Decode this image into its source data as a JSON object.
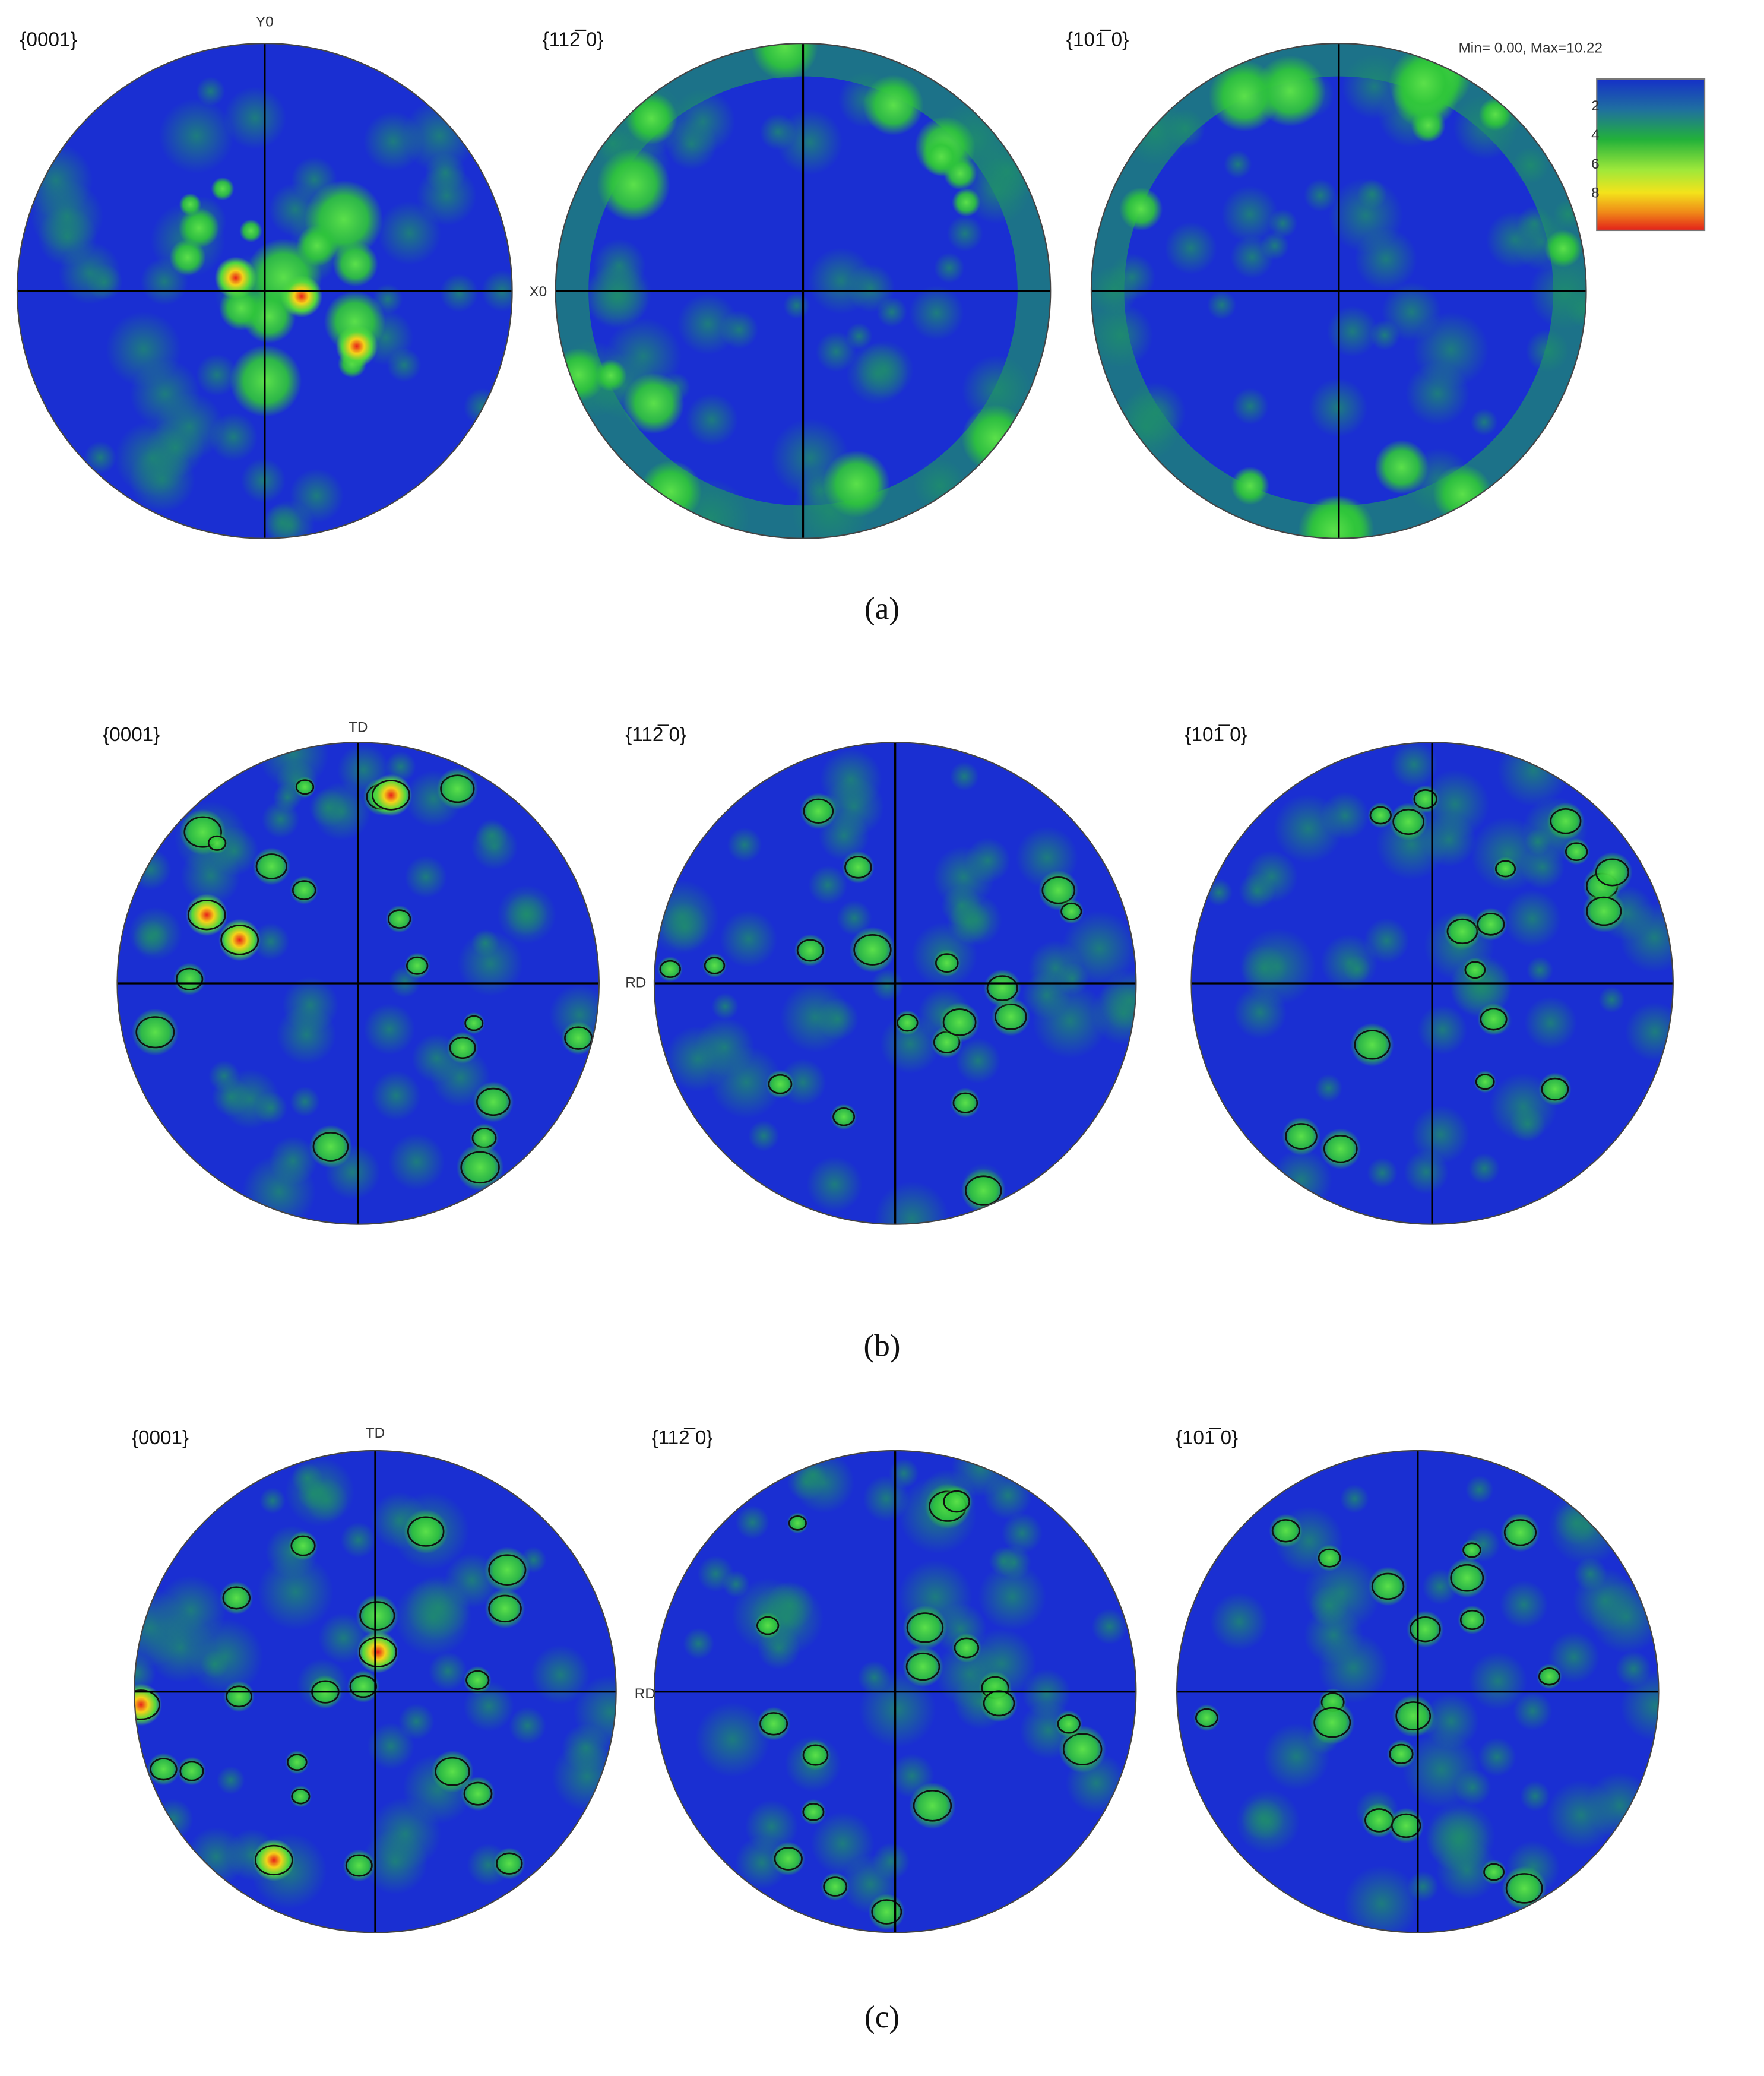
{
  "panels": [
    {
      "caption": "(a)",
      "figures": [
        {
          "label": "{0001}"
        },
        {
          "label": "{112̅ 0}"
        },
        {
          "label": "{101̅ 0}"
        }
      ],
      "top_axis": "Y0",
      "right_axis": "X0"
    },
    {
      "caption": "(b)",
      "figures": [
        {
          "label": "{0001}"
        },
        {
          "label": "{112̅ 0}"
        },
        {
          "label": "{101̅ 0}"
        }
      ],
      "top_axis": "TD",
      "right_axis": "RD"
    },
    {
      "caption": "(c)",
      "figures": [
        {
          "label": "{0001}"
        },
        {
          "label": "{112̅ 0}"
        },
        {
          "label": "{101̅ 0}"
        }
      ],
      "top_axis": "TD",
      "right_axis": "RD"
    }
  ],
  "legend": {
    "range": "Min= 0.00, Max=10.22",
    "ticks": [
      "2",
      "4",
      "6",
      "8"
    ]
  }
}
